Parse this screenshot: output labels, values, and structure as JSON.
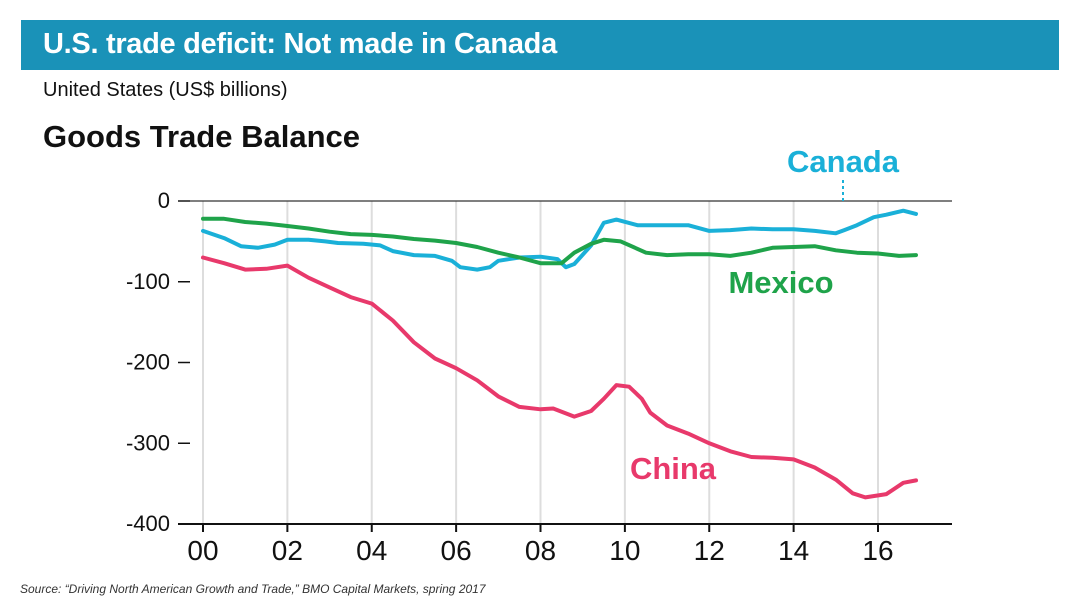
{
  "header": {
    "title": "U.S. trade deficit: Not made in Canada",
    "banner_color": "#1a92b8"
  },
  "subtitle": "United States (US$ billions)",
  "source": "Source: “Driving North American Growth and Trade,” BMO Capital Markets, spring 2017",
  "chart_data": {
    "type": "line",
    "title": "Goods Trade Balance",
    "xlabel": "",
    "ylabel": "",
    "xlim": [
      0,
      17
    ],
    "ylim": [
      -400,
      0
    ],
    "x_ticks": [
      0,
      2,
      4,
      6,
      8,
      10,
      12,
      14,
      16
    ],
    "x_tick_labels": [
      "00",
      "02",
      "04",
      "06",
      "08",
      "10",
      "12",
      "14",
      "16"
    ],
    "y_ticks": [
      0,
      -100,
      -200,
      -300,
      -400
    ],
    "y_tick_labels": [
      "0",
      "-100",
      "-200",
      "-300",
      "-400"
    ],
    "grid": "vertical",
    "series": [
      {
        "name": "Canada",
        "color": "#1ab0d8",
        "label_dashed_leader": true,
        "points": [
          [
            0,
            -37
          ],
          [
            0.5,
            -46
          ],
          [
            0.9,
            -56
          ],
          [
            1.3,
            -58
          ],
          [
            1.7,
            -54
          ],
          [
            2.0,
            -48
          ],
          [
            2.5,
            -48
          ],
          [
            2.9,
            -50
          ],
          [
            3.2,
            -52
          ],
          [
            3.8,
            -53
          ],
          [
            4.2,
            -55
          ],
          [
            4.5,
            -62
          ],
          [
            5.0,
            -67
          ],
          [
            5.5,
            -68
          ],
          [
            5.9,
            -74
          ],
          [
            6.1,
            -82
          ],
          [
            6.5,
            -85
          ],
          [
            6.8,
            -82
          ],
          [
            7.0,
            -74
          ],
          [
            7.5,
            -70
          ],
          [
            8.0,
            -69
          ],
          [
            8.4,
            -72
          ],
          [
            8.6,
            -82
          ],
          [
            8.8,
            -78
          ],
          [
            9.2,
            -55
          ],
          [
            9.5,
            -27
          ],
          [
            9.8,
            -23
          ],
          [
            10.3,
            -30
          ],
          [
            11.0,
            -30
          ],
          [
            11.5,
            -30
          ],
          [
            12.0,
            -37
          ],
          [
            12.5,
            -36
          ],
          [
            13.0,
            -34
          ],
          [
            13.5,
            -35
          ],
          [
            14.0,
            -35
          ],
          [
            14.5,
            -37
          ],
          [
            15.0,
            -40
          ],
          [
            15.2,
            -36
          ],
          [
            15.5,
            -30
          ],
          [
            15.9,
            -20
          ],
          [
            16.2,
            -17
          ],
          [
            16.6,
            -12
          ],
          [
            16.9,
            -16
          ]
        ]
      },
      {
        "name": "Mexico",
        "color": "#1fa34a",
        "points": [
          [
            0,
            -22
          ],
          [
            0.5,
            -22
          ],
          [
            1.0,
            -26
          ],
          [
            1.5,
            -28
          ],
          [
            2.0,
            -31
          ],
          [
            2.5,
            -34
          ],
          [
            3.0,
            -38
          ],
          [
            3.5,
            -41
          ],
          [
            4.0,
            -42
          ],
          [
            4.5,
            -44
          ],
          [
            5.0,
            -47
          ],
          [
            5.5,
            -49
          ],
          [
            6.0,
            -52
          ],
          [
            6.5,
            -57
          ],
          [
            7.0,
            -64
          ],
          [
            7.5,
            -70
          ],
          [
            8.0,
            -77
          ],
          [
            8.5,
            -77
          ],
          [
            8.8,
            -64
          ],
          [
            9.2,
            -53
          ],
          [
            9.5,
            -48
          ],
          [
            9.9,
            -50
          ],
          [
            10.5,
            -64
          ],
          [
            11.0,
            -67
          ],
          [
            11.5,
            -66
          ],
          [
            12.0,
            -66
          ],
          [
            12.5,
            -68
          ],
          [
            13.0,
            -64
          ],
          [
            13.5,
            -58
          ],
          [
            14.0,
            -57
          ],
          [
            14.5,
            -56
          ],
          [
            15.0,
            -61
          ],
          [
            15.5,
            -64
          ],
          [
            16.0,
            -65
          ],
          [
            16.5,
            -68
          ],
          [
            16.9,
            -67
          ]
        ]
      },
      {
        "name": "China",
        "color": "#e8396b",
        "points": [
          [
            0,
            -70
          ],
          [
            0.5,
            -77
          ],
          [
            1.0,
            -85
          ],
          [
            1.5,
            -84
          ],
          [
            2.0,
            -80
          ],
          [
            2.5,
            -95
          ],
          [
            3.0,
            -107
          ],
          [
            3.5,
            -119
          ],
          [
            4.0,
            -127
          ],
          [
            4.5,
            -148
          ],
          [
            5.0,
            -175
          ],
          [
            5.5,
            -195
          ],
          [
            6.0,
            -207
          ],
          [
            6.5,
            -222
          ],
          [
            7.0,
            -242
          ],
          [
            7.5,
            -255
          ],
          [
            8.0,
            -258
          ],
          [
            8.3,
            -257
          ],
          [
            8.8,
            -267
          ],
          [
            9.2,
            -260
          ],
          [
            9.5,
            -245
          ],
          [
            9.8,
            -228
          ],
          [
            10.1,
            -230
          ],
          [
            10.4,
            -245
          ],
          [
            10.6,
            -262
          ],
          [
            11.0,
            -278
          ],
          [
            11.5,
            -288
          ],
          [
            12.0,
            -300
          ],
          [
            12.5,
            -310
          ],
          [
            13.0,
            -317
          ],
          [
            13.5,
            -318
          ],
          [
            14.0,
            -320
          ],
          [
            14.5,
            -330
          ],
          [
            15.0,
            -345
          ],
          [
            15.4,
            -362
          ],
          [
            15.7,
            -367
          ],
          [
            16.2,
            -363
          ],
          [
            16.6,
            -349
          ],
          [
            16.9,
            -346
          ]
        ]
      }
    ]
  }
}
